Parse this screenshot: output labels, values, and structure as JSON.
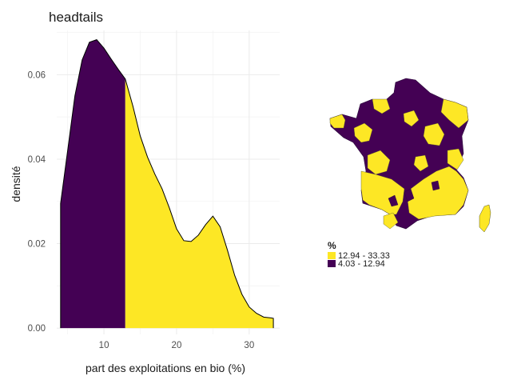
{
  "title": "headtails",
  "chart_data": {
    "type": "area",
    "title": "headtails",
    "xlabel": "part des exploitations en bio (%)",
    "ylabel": "densité",
    "xlim": [
      3.5,
      34.2
    ],
    "ylim": [
      -0.0015,
      0.0705
    ],
    "x_ticks": [
      "10",
      "20",
      "30"
    ],
    "y_ticks": [
      "0.00",
      "0.02",
      "0.04",
      "0.06"
    ],
    "x_tick_values": [
      10,
      20,
      30
    ],
    "y_tick_values": [
      0,
      0.02,
      0.04,
      0.06
    ],
    "grid": true,
    "series": [
      {
        "x": [
          4.03,
          5.0,
          6.0,
          7.0,
          8.0,
          9.0,
          10.0,
          11.0,
          12.0,
          12.94,
          14.0,
          15.0,
          16.0,
          17.0,
          18.0,
          19.0,
          20.0,
          21.0,
          22.0,
          23.0,
          24.0,
          25.0,
          26.0,
          27.0,
          28.0,
          29.0,
          30.0,
          31.0,
          32.0,
          33.0,
          33.33
        ],
        "y": [
          0.0295,
          0.042,
          0.055,
          0.0635,
          0.0677,
          0.0683,
          0.0663,
          0.0637,
          0.0612,
          0.059,
          0.0525,
          0.0455,
          0.0405,
          0.0365,
          0.033,
          0.0285,
          0.0235,
          0.0207,
          0.0205,
          0.022,
          0.0245,
          0.0265,
          0.024,
          0.0185,
          0.0125,
          0.008,
          0.005,
          0.0035,
          0.0026,
          0.0024,
          0.0023
        ]
      }
    ],
    "fill_classes": [
      {
        "range": [
          4.03,
          12.94
        ],
        "color": "#440154"
      },
      {
        "range": [
          12.94,
          33.33
        ],
        "color": "#FDE725"
      }
    ]
  },
  "map": {
    "legend_title": "%",
    "legend_items": [
      {
        "label": "12.94  -  33.33",
        "color": "#FDE725"
      },
      {
        "label": "4.03  -  12.94",
        "color": "#440154"
      }
    ]
  }
}
